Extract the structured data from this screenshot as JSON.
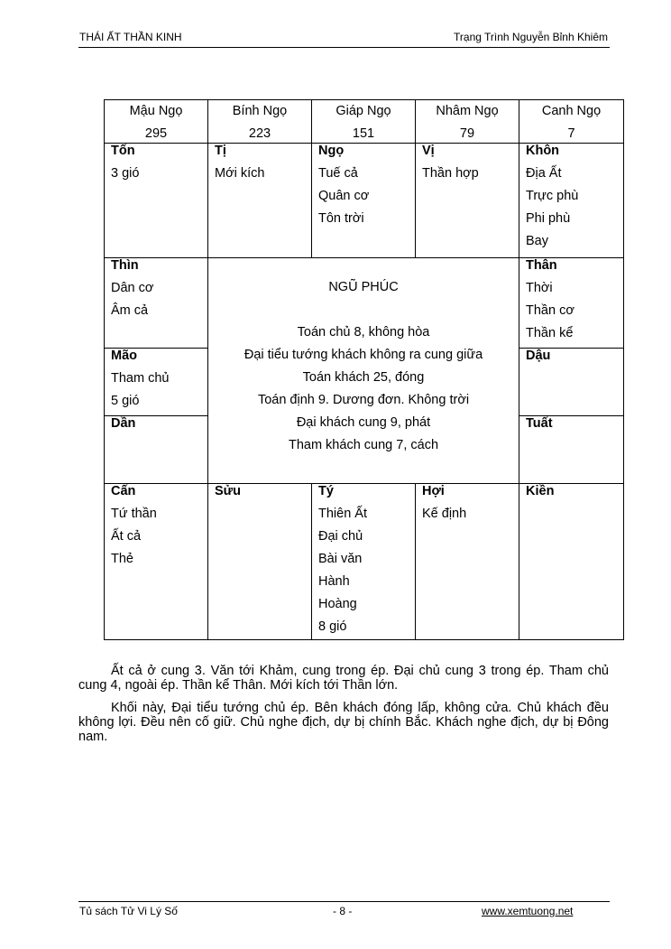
{
  "header": {
    "left": "THÁI ẤT THẦN KINH",
    "right": "Trạng Trình Nguyễn Bỉnh Khiêm"
  },
  "table": {
    "top_headers": [
      {
        "name": "Mậu Ngọ",
        "num": "295"
      },
      {
        "name": "Bính Ngọ",
        "num": "223"
      },
      {
        "name": "Giáp Ngọ",
        "num": "151"
      },
      {
        "name": "Nhâm Ngọ",
        "num": "79"
      },
      {
        "name": "Canh Ngọ",
        "num": "7"
      }
    ],
    "top_row": [
      {
        "title": "Tốn",
        "lines": [
          "3 gió"
        ]
      },
      {
        "title": "Tị",
        "lines": [
          "Mới kích"
        ]
      },
      {
        "title": "Ngọ",
        "lines": [
          "Tuế cả",
          "Quân cơ",
          "Tôn trời"
        ]
      },
      {
        "title": "Vị",
        "lines": [
          "Thần hợp"
        ]
      },
      {
        "title": "Khôn",
        "lines": [
          "Địa Ất",
          "Trực phù",
          "Phi phù",
          "Bay"
        ]
      }
    ],
    "left_col": [
      {
        "title": "Thìn",
        "lines": [
          "Dân cơ",
          "Âm cả"
        ]
      },
      {
        "title": "Mão",
        "lines": [
          "Tham chủ",
          "5 gió"
        ]
      },
      {
        "title": "Dần",
        "lines": []
      }
    ],
    "right_col": [
      {
        "title": "Thân",
        "lines": [
          "Thời",
          "Thần cơ",
          "Thần kể"
        ]
      },
      {
        "title": "Dậu",
        "lines": []
      },
      {
        "title": "Tuất",
        "lines": []
      }
    ],
    "center": {
      "title": "NGŨ PHÚC",
      "lines": [
        "Toán chủ 8, không hòa",
        "Đại tiểu tướng khách không ra cung giữa",
        "Toán khách 25, đóng",
        "Toán định 9. Dương đơn. Không trời",
        "Đại khách cung 9, phát",
        "Tham khách cung 7, cách"
      ]
    },
    "bottom_row": [
      {
        "title": "Cấn",
        "lines": [
          "Tứ thần",
          "Ất cả",
          "Thẻ"
        ]
      },
      {
        "title": "Sửu",
        "lines": []
      },
      {
        "title": "Tý",
        "lines": [
          "Thiên Ất",
          "Đại chủ",
          "Bài văn",
          "Hành",
          "Hoàng",
          "8 gió"
        ]
      },
      {
        "title": "Hợi",
        "lines": [
          "Kế định"
        ]
      },
      {
        "title": "Kiền",
        "lines": []
      }
    ]
  },
  "paragraphs": [
    "Ất cả ở cung 3. Văn tới Khảm, cung trong ép. Đại chủ cung 3 trong ép. Tham chủ cung 4, ngoài ép. Thần kể Thân. Mới kích tới Thần lớn.",
    "Khối này, Đại tiểu tướng chủ ép. Bên khách đóng lấp, không cửa. Chủ khách đều không lợi. Đều nên cố giữ. Chủ nghe địch, dự bị chính Bắc. Khách nghe địch, dự bị Đông nam."
  ],
  "footer": {
    "left": "Tủ sách Tử Vi Lý Số",
    "center": "- 8 -",
    "right": "www.xemtuong.net"
  }
}
